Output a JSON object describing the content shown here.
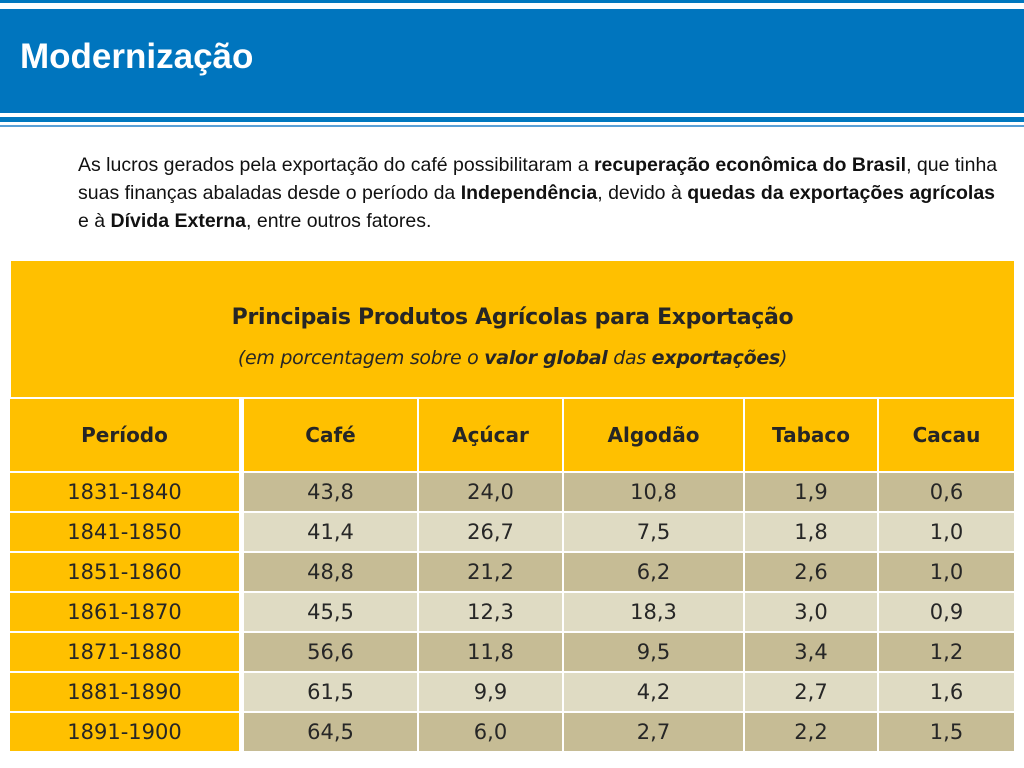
{
  "header": {
    "title": "Modernização"
  },
  "intro": {
    "s1": "As lucros gerados pela exportação do café possibilitaram a ",
    "b1": "recuperação econômica do Brasil",
    "s2": ", que tinha suas finanças abaladas desde o período da ",
    "b2": "Independência",
    "s3": ", devido à ",
    "b3": "quedas da exportações agrícolas",
    "s4": " e à ",
    "b4": "Dívida Externa",
    "s5": ", entre outros fatores."
  },
  "table": {
    "title": "Principais Produtos Agrícolas para Exportação",
    "subtitle": {
      "p1": "(em porcentagem sobre o ",
      "b1": "valor global",
      "p2": " das ",
      "b2": "exportações",
      "p3": ")"
    },
    "columns": [
      "Período",
      "Café",
      "Açúcar",
      "Algodão",
      "Tabaco",
      "Cacau"
    ],
    "rows": [
      [
        "1831-1840",
        "43,8",
        "24,0",
        "10,8",
        "1,9",
        "0,6"
      ],
      [
        "1841-1850",
        "41,4",
        "26,7",
        "7,5",
        "1,8",
        "1,0"
      ],
      [
        "1851-1860",
        "48,8",
        "21,2",
        "6,2",
        "2,6",
        "1,0"
      ],
      [
        "1861-1870",
        "45,5",
        "12,3",
        "18,3",
        "3,0",
        "0,9"
      ],
      [
        "1871-1880",
        "56,6",
        "11,8",
        "9,5",
        "3,4",
        "1,2"
      ],
      [
        "1881-1890",
        "61,5",
        "9,9",
        "4,2",
        "2,7",
        "1,6"
      ],
      [
        "1891-1900",
        "64,5",
        "6,0",
        "2,7",
        "2,2",
        "1,5"
      ]
    ]
  },
  "colors": {
    "header_blue": "#0075be",
    "table_yellow": "#ffc000",
    "row_dark": "#c6bc95",
    "row_light": "#dfdbc3"
  }
}
